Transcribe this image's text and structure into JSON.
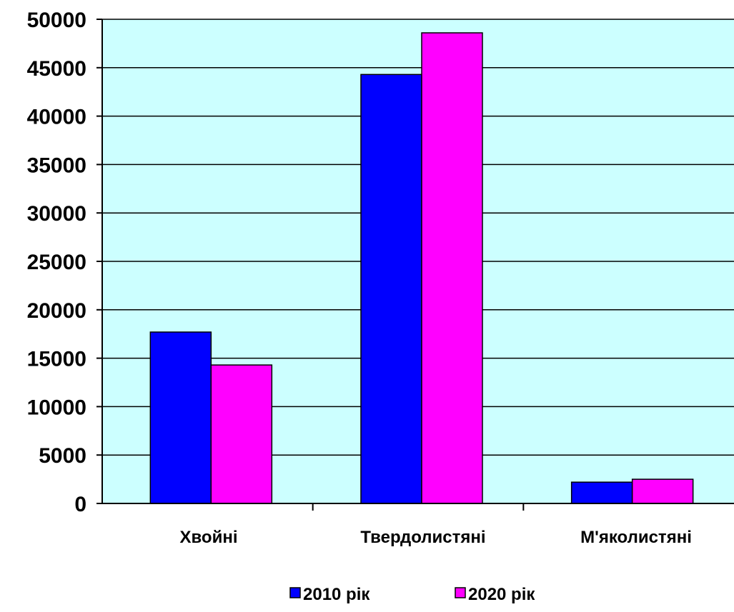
{
  "chart_data": {
    "type": "bar",
    "categories": [
      "Хвойні",
      "Твердолистяні",
      "М'яколистяні"
    ],
    "series": [
      {
        "name": "2010 рік",
        "values": [
          17700,
          44300,
          2200
        ],
        "color": "#0000ff"
      },
      {
        "name": "2020 рік",
        "values": [
          14300,
          48600,
          2500
        ],
        "color": "#ff00ff"
      }
    ],
    "ylim": [
      0,
      50000
    ],
    "yticks": [
      0,
      5000,
      10000,
      15000,
      20000,
      25000,
      30000,
      35000,
      40000,
      45000,
      50000
    ],
    "grid": true,
    "legend": "bottom-center",
    "plot_background": "#ccffff"
  }
}
